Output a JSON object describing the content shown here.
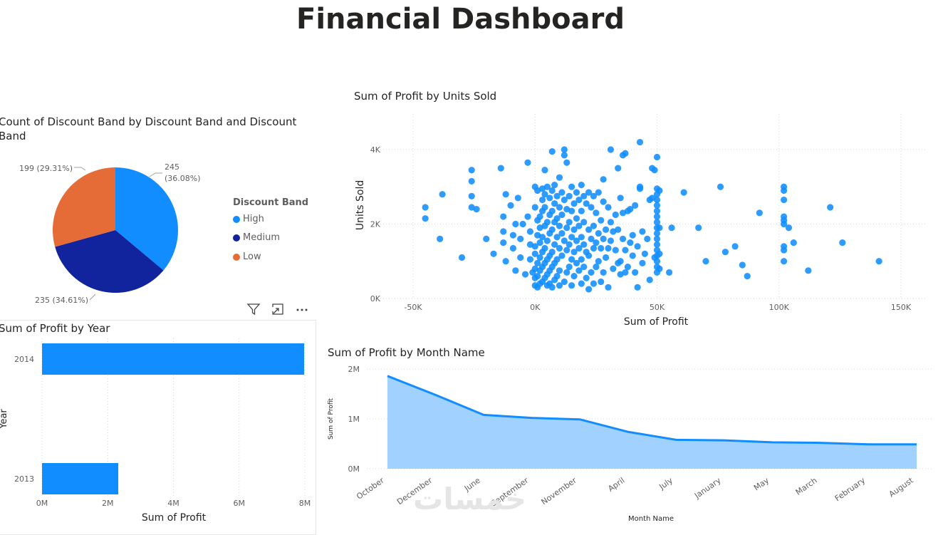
{
  "title": "Financial Dashboard",
  "pie": {
    "title_line1": "Count of Discount Band by Discount Band and Discount",
    "title_line2": "Band",
    "legend_title": "Discount Band",
    "labels": {
      "high_a": "245",
      "high_b": "(36.08%)",
      "medium": "235 (34.61%)",
      "low": "199 (29.31%)"
    },
    "chart_data": {
      "type": "pie",
      "categories": [
        "High",
        "Medium",
        "Low"
      ],
      "values": [
        245,
        235,
        199
      ],
      "percentages": [
        36.08,
        34.61,
        29.31
      ],
      "colors": [
        "#118DFF",
        "#12239E",
        "#E66C37"
      ]
    }
  },
  "scatter": {
    "title": "Sum of Profit by Units Sold",
    "xlabel": "Sum of Profit",
    "ylabel": "Units Sold",
    "xticks": [
      "-50K",
      "0K",
      "50K",
      "100K",
      "150K"
    ],
    "yticks": [
      "0K",
      "2K",
      "4K"
    ],
    "chart_data": {
      "type": "scatter",
      "xlim": [
        -55000,
        160000
      ],
      "ylim": [
        0,
        4600
      ],
      "color": "#118DFF",
      "points": [
        [
          -45000,
          2150
        ],
        [
          -45000,
          2450
        ],
        [
          -39000,
          1600
        ],
        [
          -38000,
          2800
        ],
        [
          -30000,
          1100
        ],
        [
          -26000,
          3450
        ],
        [
          -26000,
          3150
        ],
        [
          -26000,
          2750
        ],
        [
          -26000,
          2450
        ],
        [
          -24000,
          2400
        ],
        [
          -20000,
          1600
        ],
        [
          -17000,
          1200
        ],
        [
          -14000,
          3500
        ],
        [
          -13000,
          2200
        ],
        [
          -13000,
          1800
        ],
        [
          -13000,
          1500
        ],
        [
          -12000,
          2800
        ],
        [
          -12000,
          1000
        ],
        [
          -10000,
          2500
        ],
        [
          -9000,
          1350
        ],
        [
          -9000,
          1700
        ],
        [
          -8000,
          750
        ],
        [
          -8000,
          2000
        ],
        [
          -7000,
          2700
        ],
        [
          -6000,
          1600
        ],
        [
          -6000,
          1100
        ],
        [
          -5000,
          2000
        ],
        [
          -4000,
          650
        ],
        [
          -3000,
          3650
        ],
        [
          -3000,
          2200
        ],
        [
          -2000,
          1800
        ],
        [
          -2000,
          1450
        ],
        [
          -2000,
          1050
        ],
        [
          -1000,
          700
        ],
        [
          0,
          3000
        ],
        [
          0,
          2450
        ],
        [
          0,
          1400
        ],
        [
          0,
          1200
        ],
        [
          0,
          800
        ],
        [
          0,
          550
        ],
        [
          0,
          350
        ],
        [
          1000,
          2900
        ],
        [
          1000,
          2100
        ],
        [
          1000,
          1700
        ],
        [
          1000,
          950
        ],
        [
          1000,
          600
        ],
        [
          1000,
          300
        ],
        [
          2000,
          2200
        ],
        [
          2000,
          1900
        ],
        [
          2000,
          1500
        ],
        [
          2000,
          1100
        ],
        [
          2000,
          750
        ],
        [
          2000,
          400
        ],
        [
          3000,
          2950
        ],
        [
          3000,
          2650
        ],
        [
          3000,
          2350
        ],
        [
          3000,
          1650
        ],
        [
          3000,
          1250
        ],
        [
          3000,
          850
        ],
        [
          3000,
          450
        ],
        [
          4000,
          3450
        ],
        [
          4000,
          2800
        ],
        [
          4000,
          2450
        ],
        [
          4000,
          1950
        ],
        [
          4000,
          1350
        ],
        [
          4000,
          950
        ],
        [
          4000,
          550
        ],
        [
          5000,
          3000
        ],
        [
          5000,
          2050
        ],
        [
          5000,
          1550
        ],
        [
          5000,
          1050
        ],
        [
          5000,
          650
        ],
        [
          5000,
          350
        ],
        [
          6000,
          2700
        ],
        [
          6000,
          2250
        ],
        [
          6000,
          1750
        ],
        [
          6000,
          1150
        ],
        [
          6000,
          750
        ],
        [
          6000,
          400
        ],
        [
          7000,
          3950
        ],
        [
          7000,
          2900
        ],
        [
          7000,
          2350
        ],
        [
          7000,
          1850
        ],
        [
          7000,
          1250
        ],
        [
          7000,
          850
        ],
        [
          7000,
          300
        ],
        [
          8000,
          3050
        ],
        [
          8000,
          2550
        ],
        [
          8000,
          2050
        ],
        [
          8000,
          1450
        ],
        [
          8000,
          950
        ],
        [
          8000,
          500
        ],
        [
          9000,
          2750
        ],
        [
          9000,
          2150
        ],
        [
          9000,
          1650
        ],
        [
          9000,
          1050
        ],
        [
          9000,
          600
        ],
        [
          10000,
          3250
        ],
        [
          10000,
          2450
        ],
        [
          10000,
          1950
        ],
        [
          10000,
          1350
        ],
        [
          10000,
          750
        ],
        [
          10000,
          350
        ],
        [
          11000,
          2850
        ],
        [
          11000,
          2250
        ],
        [
          11000,
          1750
        ],
        [
          11000,
          1150
        ],
        [
          12000,
          4000
        ],
        [
          12000,
          3850
        ],
        [
          12000,
          2650
        ],
        [
          12000,
          1550
        ],
        [
          12000,
          450
        ],
        [
          13000,
          3650
        ],
        [
          13000,
          2400
        ],
        [
          13000,
          1900
        ],
        [
          13000,
          1300
        ],
        [
          13000,
          700
        ],
        [
          14000,
          2750
        ],
        [
          14000,
          2050
        ],
        [
          14000,
          1450
        ],
        [
          14000,
          850
        ],
        [
          15000,
          3000
        ],
        [
          15000,
          2350
        ],
        [
          15000,
          1650
        ],
        [
          15000,
          1050
        ],
        [
          15000,
          350
        ],
        [
          16000,
          2550
        ],
        [
          16000,
          1850
        ],
        [
          16000,
          1250
        ],
        [
          16000,
          600
        ],
        [
          17000,
          2850
        ],
        [
          17000,
          2150
        ],
        [
          17000,
          1550
        ],
        [
          17000,
          950
        ],
        [
          18000,
          2650
        ],
        [
          18000,
          1950
        ],
        [
          18000,
          1350
        ],
        [
          18000,
          750
        ],
        [
          19000,
          3050
        ],
        [
          19000,
          2350
        ],
        [
          19000,
          1650
        ],
        [
          19000,
          1050
        ],
        [
          19000,
          400
        ],
        [
          20000,
          2750
        ],
        [
          20000,
          2050
        ],
        [
          20000,
          1450
        ],
        [
          20000,
          850
        ],
        [
          21000,
          2550
        ],
        [
          21000,
          1250
        ],
        [
          21000,
          550
        ],
        [
          22000,
          2850
        ],
        [
          22000,
          1850
        ],
        [
          22000,
          1150
        ],
        [
          22000,
          250
        ],
        [
          23000,
          2450
        ],
        [
          23000,
          1600
        ],
        [
          23000,
          700
        ],
        [
          24000,
          2750
        ],
        [
          24000,
          1950
        ],
        [
          24000,
          1350
        ],
        [
          24000,
          400
        ],
        [
          25000,
          2300
        ],
        [
          25000,
          1500
        ],
        [
          25000,
          850
        ],
        [
          26000,
          2850
        ],
        [
          26000,
          1750
        ],
        [
          26000,
          1000
        ],
        [
          27000,
          2100
        ],
        [
          27000,
          1350
        ],
        [
          27000,
          450
        ],
        [
          28000,
          3200
        ],
        [
          28000,
          2600
        ],
        [
          28000,
          1600
        ],
        [
          28000,
          700
        ],
        [
          29000,
          1850
        ],
        [
          29000,
          1100
        ],
        [
          30000,
          2450
        ],
        [
          30000,
          1350
        ],
        [
          30000,
          300
        ],
        [
          31000,
          4000
        ],
        [
          31000,
          2050
        ],
        [
          31000,
          1550
        ],
        [
          32000,
          1800
        ],
        [
          32000,
          800
        ],
        [
          33000,
          2250
        ],
        [
          33000,
          1300
        ],
        [
          34000,
          3500
        ],
        [
          34000,
          1850
        ],
        [
          34000,
          950
        ],
        [
          35000,
          2700
        ],
        [
          35000,
          1000
        ],
        [
          35000,
          650
        ],
        [
          36000,
          3850
        ],
        [
          36000,
          2300
        ],
        [
          36000,
          1600
        ],
        [
          37000,
          3900
        ],
        [
          37000,
          700
        ],
        [
          37000,
          1300
        ],
        [
          38000,
          2350
        ],
        [
          38000,
          850
        ],
        [
          39000,
          2400
        ],
        [
          39000,
          1500
        ],
        [
          40000,
          1700
        ],
        [
          40000,
          1150
        ],
        [
          41000,
          2500
        ],
        [
          41000,
          700
        ],
        [
          42000,
          300
        ],
        [
          42000,
          1400
        ],
        [
          43000,
          4200
        ],
        [
          43000,
          2950
        ],
        [
          43000,
          3000
        ],
        [
          44000,
          1800
        ],
        [
          44000,
          950
        ],
        [
          45000,
          1200
        ],
        [
          46000,
          1600
        ],
        [
          47000,
          2650
        ],
        [
          47000,
          500
        ],
        [
          48000,
          2700
        ],
        [
          48000,
          3500
        ],
        [
          49000,
          1100
        ],
        [
          49000,
          3450
        ],
        [
          50000,
          3800
        ],
        [
          50000,
          2950
        ],
        [
          50000,
          2800
        ],
        [
          50000,
          2650
        ],
        [
          50000,
          2500
        ],
        [
          50000,
          2350
        ],
        [
          50000,
          2200
        ],
        [
          50000,
          2050
        ],
        [
          50000,
          1900
        ],
        [
          50000,
          1750
        ],
        [
          50000,
          1600
        ],
        [
          50000,
          1450
        ],
        [
          50000,
          1300
        ],
        [
          50000,
          1150
        ],
        [
          50000,
          1000
        ],
        [
          50000,
          850
        ],
        [
          50000,
          700
        ],
        [
          51000,
          2900
        ],
        [
          51000,
          1900
        ],
        [
          51000,
          1200
        ],
        [
          51000,
          800
        ],
        [
          55000,
          700
        ],
        [
          56000,
          1900
        ],
        [
          61000,
          2850
        ],
        [
          67000,
          1900
        ],
        [
          70000,
          1000
        ],
        [
          76000,
          3000
        ],
        [
          78000,
          1250
        ],
        [
          82000,
          1400
        ],
        [
          85000,
          900
        ],
        [
          87000,
          600
        ],
        [
          92000,
          2300
        ],
        [
          102000,
          3000
        ],
        [
          102000,
          2900
        ],
        [
          102000,
          2650
        ],
        [
          102000,
          2200
        ],
        [
          102000,
          2100
        ],
        [
          102000,
          2000
        ],
        [
          102000,
          1400
        ],
        [
          102000,
          1300
        ],
        [
          102000,
          1000
        ],
        [
          104000,
          1900
        ],
        [
          106000,
          1500
        ],
        [
          112000,
          750
        ],
        [
          121000,
          2450
        ],
        [
          126000,
          1500
        ],
        [
          141000,
          1000
        ]
      ]
    }
  },
  "year_bar": {
    "title": "Sum of Profit by Year",
    "xlabel": "Sum of Profit",
    "ylabel": "Year",
    "xticks": [
      "0M",
      "2M",
      "4M",
      "6M",
      "8M"
    ],
    "chart_data": {
      "type": "bar",
      "orientation": "horizontal",
      "categories": [
        "2014",
        "2013"
      ],
      "values": [
        7980000,
        2320000
      ],
      "xlim": [
        0,
        8000000
      ],
      "color": "#118DFF"
    }
  },
  "month_area": {
    "title": "Sum of Profit by Month Name",
    "xlabel": "Month Name",
    "ylabel": "Sum of Profit",
    "yticks": [
      "0M",
      "1M",
      "2M"
    ],
    "chart_data": {
      "type": "area",
      "categories": [
        "October",
        "December",
        "June",
        "September",
        "November",
        "April",
        "July",
        "January",
        "May",
        "March",
        "February",
        "August"
      ],
      "values": [
        1860000,
        1480000,
        1080000,
        1020000,
        990000,
        740000,
        580000,
        570000,
        530000,
        520000,
        490000,
        490000
      ],
      "ylim": [
        0,
        2000000
      ],
      "line_color": "#118DFF",
      "fill_color": "#A0D1FF"
    }
  }
}
